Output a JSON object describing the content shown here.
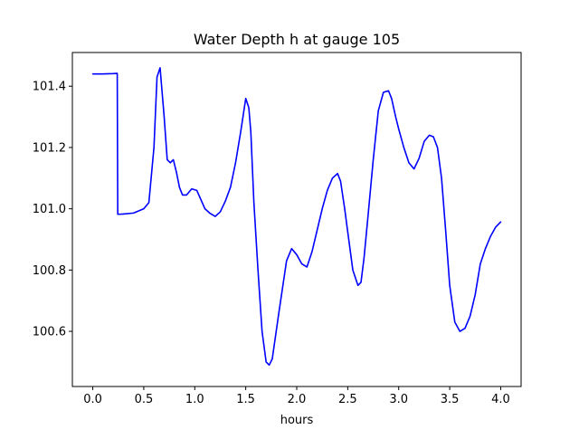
{
  "chart_data": {
    "type": "line",
    "title": "Water Depth h at gauge 105",
    "xlabel": "hours",
    "ylabel": "",
    "xlim": [
      -0.2,
      4.2
    ],
    "ylim": [
      100.42,
      101.51
    ],
    "xticks": [
      0.0,
      0.5,
      1.0,
      1.5,
      2.0,
      2.5,
      3.0,
      3.5,
      4.0
    ],
    "xtick_labels": [
      "0.0",
      "0.5",
      "1.0",
      "1.5",
      "2.0",
      "2.5",
      "3.0",
      "3.5",
      "4.0"
    ],
    "yticks": [
      100.6,
      100.8,
      101.0,
      101.2,
      101.4
    ],
    "ytick_labels": [
      "100.6",
      "100.8",
      "101.0",
      "101.2",
      "101.4"
    ],
    "grid": false,
    "legend": "none",
    "series": [
      {
        "color": "#0000ff",
        "x": [
          0.0,
          0.1,
          0.2,
          0.24,
          0.245,
          0.3,
          0.4,
          0.5,
          0.55,
          0.6,
          0.63,
          0.66,
          0.7,
          0.73,
          0.76,
          0.79,
          0.82,
          0.85,
          0.88,
          0.92,
          0.97,
          1.02,
          1.06,
          1.1,
          1.15,
          1.2,
          1.25,
          1.3,
          1.35,
          1.4,
          1.45,
          1.5,
          1.53,
          1.55,
          1.58,
          1.62,
          1.66,
          1.7,
          1.73,
          1.76,
          1.79,
          1.82,
          1.86,
          1.9,
          1.95,
          2.0,
          2.05,
          2.1,
          2.15,
          2.2,
          2.25,
          2.3,
          2.35,
          2.4,
          2.43,
          2.47,
          2.51,
          2.55,
          2.6,
          2.63,
          2.66,
          2.7,
          2.75,
          2.8,
          2.85,
          2.9,
          2.93,
          2.97,
          3.0,
          3.05,
          3.1,
          3.15,
          3.2,
          3.25,
          3.3,
          3.34,
          3.38,
          3.42,
          3.46,
          3.5,
          3.55,
          3.6,
          3.65,
          3.7,
          3.75,
          3.8,
          3.85,
          3.9,
          3.95,
          4.0
        ],
        "y": [
          101.44,
          101.44,
          101.441,
          101.442,
          100.982,
          100.983,
          100.986,
          101.0,
          101.02,
          101.2,
          101.43,
          101.46,
          101.3,
          101.16,
          101.15,
          101.16,
          101.12,
          101.07,
          101.045,
          101.045,
          101.065,
          101.06,
          101.03,
          101.0,
          100.985,
          100.975,
          100.99,
          101.025,
          101.07,
          101.15,
          101.25,
          101.36,
          101.33,
          101.25,
          101.02,
          100.8,
          100.6,
          100.5,
          100.49,
          100.51,
          100.58,
          100.65,
          100.74,
          100.83,
          100.87,
          100.85,
          100.82,
          100.81,
          100.86,
          100.93,
          101.0,
          101.06,
          101.1,
          101.115,
          101.09,
          101.0,
          100.9,
          100.8,
          100.75,
          100.76,
          100.84,
          100.98,
          101.16,
          101.32,
          101.38,
          101.385,
          101.36,
          101.3,
          101.26,
          101.2,
          101.15,
          101.13,
          101.165,
          101.22,
          101.24,
          101.235,
          101.2,
          101.1,
          100.93,
          100.75,
          100.63,
          100.6,
          100.61,
          100.65,
          100.72,
          100.82,
          100.87,
          100.91,
          100.94,
          100.957
        ]
      }
    ]
  }
}
